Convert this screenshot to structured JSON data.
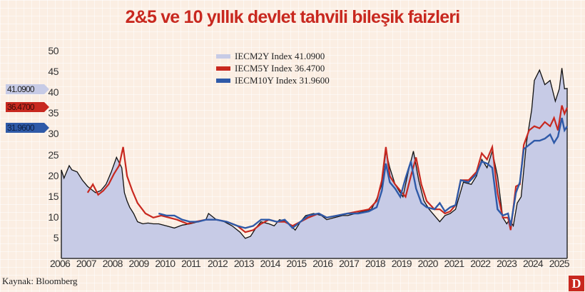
{
  "title": "2&5 ve 10 yıllık devlet tahvili bileşik faizleri",
  "source_label": "Kaynak:",
  "source_value": "Bloomberg",
  "logo": "D",
  "colors": {
    "background": "#fbeee3",
    "title": "#c8281f",
    "s2y": "#c7cbe6",
    "s2y_line": "#111111",
    "s5y": "#c8281f",
    "s10y": "#2f5aa8"
  },
  "value_tags": [
    {
      "label": "41.0900",
      "value": 41.09,
      "color": "#c7cbe6"
    },
    {
      "label": "36.4700",
      "value": 36.47,
      "color": "#c8281f"
    },
    {
      "label": "31.9600",
      "value": 31.96,
      "color": "#2f5aa8"
    }
  ],
  "legend": [
    {
      "label": "IECM2Y Index 41.0900",
      "color": "#c7cbe6"
    },
    {
      "label": "IECM5Y Index 36.4700",
      "color": "#c8281f"
    },
    {
      "label": "IECM10Y Index 31.9600",
      "color": "#2f5aa8"
    }
  ],
  "chart_data": {
    "type": "area",
    "title": "2&5 ve 10 yıllık devlet tahvili bileşik faizleri",
    "xlabel": "",
    "ylabel": "",
    "ylim": [
      0,
      50
    ],
    "yticks": [
      5,
      10,
      15,
      20,
      25,
      30,
      35,
      40,
      45,
      50
    ],
    "xticks": [
      "2006",
      "2007",
      "2008",
      "2009",
      "2010",
      "2011",
      "2012",
      "2013",
      "2014",
      "2015",
      "2016",
      "2017",
      "2018",
      "2019",
      "2020",
      "2021",
      "2022",
      "2023",
      "2024",
      "2025"
    ],
    "grid": true,
    "legend_position": "top-center",
    "series": [
      {
        "name": "IECM2Y Index 41.0900",
        "style": "filled area with black outline",
        "x": [
          2006.0,
          2006.1,
          2006.3,
          2006.4,
          2006.6,
          2006.8,
          2007.0,
          2007.3,
          2007.5,
          2007.7,
          2007.9,
          2008.1,
          2008.3,
          2008.4,
          2008.5,
          2008.6,
          2008.75,
          2008.9,
          2009.1,
          2009.3,
          2009.5,
          2009.7,
          2010.0,
          2010.3,
          2010.6,
          2010.9,
          2011.2,
          2011.5,
          2011.6,
          2011.9,
          2012.2,
          2012.5,
          2012.8,
          2013.0,
          2013.2,
          2013.4,
          2013.6,
          2013.9,
          2014.1,
          2014.3,
          2014.6,
          2014.9,
          2015.1,
          2015.3,
          2015.6,
          2015.9,
          2016.1,
          2016.4,
          2016.7,
          2016.9,
          2017.2,
          2017.5,
          2017.8,
          2018.0,
          2018.2,
          2018.35,
          2018.5,
          2018.7,
          2018.8,
          2019.0,
          2019.2,
          2019.4,
          2019.6,
          2019.8,
          2020.0,
          2020.2,
          2020.4,
          2020.6,
          2020.8,
          2021.0,
          2021.3,
          2021.6,
          2021.8,
          2022.0,
          2022.2,
          2022.4,
          2022.6,
          2022.8,
          2022.95,
          2023.05,
          2023.2,
          2023.35,
          2023.5,
          2023.7,
          2023.9,
          2024.0,
          2024.2,
          2024.4,
          2024.6,
          2024.8,
          2024.95,
          2025.05,
          2025.15,
          2025.25
        ],
        "values": [
          21.5,
          19.5,
          22.5,
          21.5,
          21.0,
          19.0,
          17.5,
          16.0,
          16.5,
          18.0,
          21.0,
          24.5,
          22.0,
          16.0,
          14.0,
          12.5,
          11.0,
          9.0,
          8.5,
          8.7,
          8.5,
          8.5,
          8.0,
          7.5,
          8.2,
          8.5,
          9.0,
          9.5,
          11.0,
          9.5,
          9.0,
          8.0,
          6.5,
          5.0,
          5.5,
          7.5,
          9.0,
          8.5,
          8.0,
          9.5,
          9.0,
          7.0,
          9.0,
          10.5,
          11.0,
          10.5,
          9.5,
          10.0,
          10.5,
          10.5,
          11.0,
          11.5,
          12.0,
          14.5,
          18.0,
          26.0,
          22.0,
          18.0,
          17.0,
          15.0,
          21.0,
          26.0,
          19.0,
          14.0,
          12.0,
          10.5,
          9.0,
          10.5,
          11.0,
          12.0,
          18.5,
          18.0,
          20.0,
          24.0,
          22.0,
          26.0,
          20.0,
          10.0,
          8.5,
          9.5,
          8.0,
          13.5,
          15.0,
          28.0,
          36.0,
          43.0,
          45.5,
          42.0,
          43.0,
          38.0,
          41.0,
          46.0,
          41.0,
          41.09
        ]
      },
      {
        "name": "IECM5Y Index 36.4700",
        "style": "line",
        "x": [
          2007.0,
          2007.2,
          2007.4,
          2007.6,
          2007.8,
          2008.0,
          2008.2,
          2008.35,
          2008.5,
          2008.7,
          2008.9,
          2009.2,
          2009.5,
          2009.8,
          2010.1,
          2010.4,
          2010.8,
          2011.1,
          2011.5,
          2011.9,
          2012.3,
          2012.7,
          2013.0,
          2013.3,
          2013.6,
          2013.9,
          2014.2,
          2014.5,
          2014.8,
          2015.1,
          2015.4,
          2015.8,
          2016.1,
          2016.5,
          2016.9,
          2017.3,
          2017.7,
          2018.0,
          2018.2,
          2018.35,
          2018.5,
          2018.7,
          2018.9,
          2019.1,
          2019.3,
          2019.5,
          2019.7,
          2019.9,
          2020.2,
          2020.4,
          2020.6,
          2020.8,
          2021.0,
          2021.2,
          2021.5,
          2021.8,
          2022.0,
          2022.2,
          2022.4,
          2022.6,
          2022.8,
          2023.0,
          2023.1,
          2023.3,
          2023.45,
          2023.6,
          2023.8,
          2024.0,
          2024.2,
          2024.4,
          2024.6,
          2024.75,
          2024.9,
          2025.05,
          2025.15,
          2025.25
        ],
        "values": [
          16.0,
          18.0,
          15.5,
          16.5,
          18.0,
          20.5,
          22.5,
          27.0,
          20.0,
          16.5,
          13.5,
          11.0,
          10.0,
          10.5,
          10.0,
          9.5,
          8.5,
          9.0,
          9.5,
          9.5,
          9.0,
          8.0,
          6.5,
          7.0,
          8.5,
          9.5,
          9.0,
          9.0,
          8.0,
          9.0,
          10.0,
          11.0,
          10.0,
          10.5,
          11.0,
          11.5,
          12.0,
          14.0,
          19.0,
          27.0,
          20.0,
          18.0,
          16.5,
          15.0,
          20.0,
          24.5,
          18.0,
          14.0,
          12.0,
          12.0,
          11.0,
          11.5,
          13.0,
          19.0,
          19.0,
          21.0,
          25.5,
          24.0,
          27.0,
          16.0,
          10.0,
          10.0,
          7.0,
          17.5,
          18.0,
          27.5,
          31.0,
          32.0,
          31.5,
          33.0,
          32.0,
          34.0,
          31.0,
          37.0,
          35.0,
          36.47
        ]
      },
      {
        "name": "IECM10Y Index 31.9600",
        "style": "line",
        "x": [
          2009.7,
          2010.0,
          2010.3,
          2010.6,
          2010.9,
          2011.2,
          2011.5,
          2011.9,
          2012.3,
          2012.7,
          2013.0,
          2013.3,
          2013.6,
          2013.9,
          2014.2,
          2014.5,
          2014.8,
          2015.1,
          2015.4,
          2015.8,
          2016.1,
          2016.5,
          2016.9,
          2017.3,
          2017.7,
          2018.0,
          2018.2,
          2018.35,
          2018.5,
          2018.7,
          2018.9,
          2019.1,
          2019.3,
          2019.5,
          2019.7,
          2019.9,
          2020.2,
          2020.4,
          2020.6,
          2020.8,
          2021.0,
          2021.2,
          2021.5,
          2021.8,
          2022.0,
          2022.2,
          2022.4,
          2022.6,
          2022.8,
          2023.0,
          2023.1,
          2023.3,
          2023.45,
          2023.6,
          2023.8,
          2024.0,
          2024.2,
          2024.4,
          2024.6,
          2024.75,
          2024.9,
          2025.05,
          2025.15,
          2025.25
        ],
        "values": [
          11.0,
          10.5,
          10.5,
          9.5,
          9.0,
          9.0,
          9.5,
          9.5,
          9.0,
          8.0,
          7.5,
          8.0,
          9.5,
          9.5,
          9.0,
          9.5,
          7.5,
          9.0,
          10.5,
          11.0,
          10.0,
          10.5,
          11.0,
          11.0,
          11.5,
          12.5,
          16.5,
          23.0,
          18.5,
          17.0,
          15.0,
          19.5,
          23.5,
          17.0,
          13.5,
          12.5,
          12.0,
          13.5,
          11.5,
          12.5,
          13.0,
          19.0,
          18.5,
          20.5,
          23.5,
          23.0,
          22.0,
          12.0,
          10.5,
          11.0,
          8.0,
          16.0,
          18.5,
          26.5,
          27.5,
          28.5,
          28.5,
          29.0,
          30.0,
          28.0,
          29.5,
          34.0,
          31.0,
          31.96
        ]
      }
    ]
  }
}
